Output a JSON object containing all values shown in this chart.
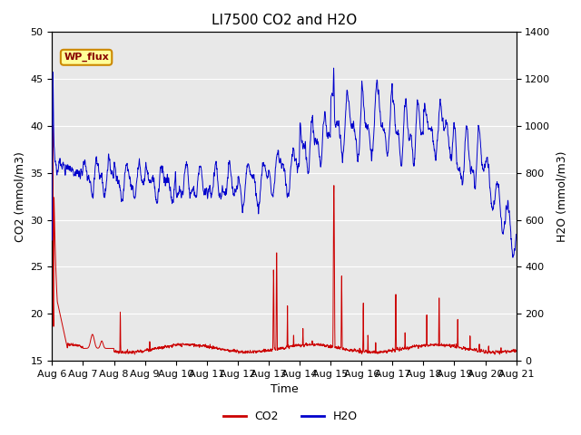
{
  "title": "LI7500 CO2 and H2O",
  "xlabel": "Time",
  "ylabel_left": "CO2 (mmol/m3)",
  "ylabel_right": "H2O (mmol/m3)",
  "ylim_left": [
    15,
    50
  ],
  "ylim_right": [
    0,
    1400
  ],
  "co2_color": "#cc0000",
  "h2o_color": "#0000cc",
  "background_color": "#ffffff",
  "plot_bg_color": "#e8e8e8",
  "grid_color": "#ffffff",
  "annotation_text": "WP_flux",
  "annotation_bg": "#ffff99",
  "annotation_border": "#cc8800",
  "legend_co2": "CO2",
  "legend_h2o": "H2O",
  "title_fontsize": 11,
  "label_fontsize": 9,
  "tick_fontsize": 8,
  "day_labels": [
    "Aug 6",
    "Aug 7",
    "Aug 8",
    "Aug 9",
    "Aug 10",
    "Aug 11",
    "Aug 12",
    "Aug 13",
    "Aug 14",
    "Aug 15",
    "Aug 16",
    "Aug 17",
    "Aug 18",
    "Aug 19",
    "Aug 20",
    "Aug 21"
  ]
}
